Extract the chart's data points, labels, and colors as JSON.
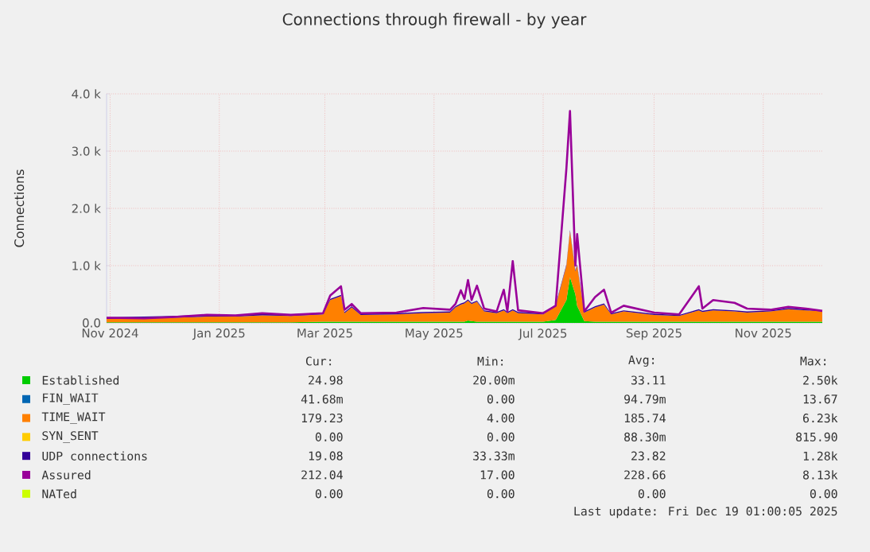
{
  "chart_data": {
    "type": "area",
    "stacked": true,
    "title": "Connections through firewall - by year",
    "ylabel": "Connections",
    "x": [
      "2024-10-30",
      "2024-11-20",
      "2024-12-05",
      "2024-12-25",
      "2025-01-10",
      "2025-01-25",
      "2025-02-10",
      "2025-02-28",
      "2025-03-04",
      "2025-03-10",
      "2025-03-12",
      "2025-03-16",
      "2025-03-21",
      "2025-04-10",
      "2025-04-25",
      "2025-05-10",
      "2025-05-13",
      "2025-05-16",
      "2025-05-18",
      "2025-05-20",
      "2025-05-22",
      "2025-05-25",
      "2025-05-29",
      "2025-06-05",
      "2025-06-09",
      "2025-06-11",
      "2025-06-14",
      "2025-06-17",
      "2025-07-01",
      "2025-07-08",
      "2025-07-14",
      "2025-07-16",
      "2025-07-19",
      "2025-07-20",
      "2025-07-24",
      "2025-07-30",
      "2025-08-04",
      "2025-08-08",
      "2025-08-15",
      "2025-09-01",
      "2025-09-15",
      "2025-09-26",
      "2025-09-28",
      "2025-10-04",
      "2025-10-16",
      "2025-10-23",
      "2025-11-05",
      "2025-11-15",
      "2025-11-25",
      "2025-12-04"
    ],
    "series": [
      {
        "name": "Established",
        "color": "#00cc00",
        "values": [
          10,
          10,
          10,
          10,
          10,
          10,
          10,
          20,
          20,
          20,
          20,
          20,
          20,
          20,
          20,
          20,
          20,
          20,
          20,
          40,
          30,
          20,
          20,
          20,
          20,
          20,
          20,
          20,
          20,
          50,
          400,
          800,
          500,
          300,
          30,
          20,
          20,
          20,
          20,
          20,
          20,
          20,
          20,
          20,
          20,
          20,
          20,
          20,
          20,
          20
        ]
      },
      {
        "name": "FIN_WAIT",
        "color": "#0066b3",
        "values": [
          null,
          null,
          null,
          null,
          null,
          null,
          null,
          null,
          null,
          null,
          null,
          null,
          null,
          null,
          null,
          null,
          null,
          null,
          null,
          null,
          null,
          null,
          null,
          null,
          null,
          null,
          null,
          null,
          null,
          null,
          null,
          null,
          null,
          null,
          null,
          null,
          null,
          null,
          null,
          null,
          null,
          null,
          null,
          null,
          null,
          null,
          null,
          null,
          null,
          null
        ]
      },
      {
        "name": "TIME_WAIT",
        "color": "#ff8000",
        "values": [
          60,
          70,
          80,
          100,
          100,
          120,
          110,
          130,
          380,
          450,
          150,
          250,
          120,
          130,
          150,
          160,
          250,
          300,
          320,
          350,
          300,
          350,
          180,
          150,
          200,
          150,
          200,
          150,
          130,
          250,
          600,
          800,
          400,
          700,
          150,
          250,
          300,
          130,
          180,
          120,
          100,
          200,
          170,
          200,
          180,
          160,
          180,
          220,
          200,
          180
        ]
      },
      {
        "name": "SYN_SENT",
        "color": "#ffcc00",
        "values": [
          null,
          null,
          null,
          null,
          null,
          null,
          null,
          null,
          null,
          null,
          null,
          null,
          null,
          null,
          null,
          null,
          null,
          null,
          null,
          null,
          null,
          null,
          null,
          null,
          null,
          null,
          null,
          null,
          null,
          null,
          null,
          null,
          null,
          null,
          null,
          null,
          null,
          null,
          null,
          null,
          null,
          null,
          null,
          null,
          null,
          null,
          null,
          null,
          null,
          null
        ]
      },
      {
        "name": "UDP connections",
        "color": "#330099",
        "values": [
          30,
          30,
          30,
          30,
          30,
          30,
          30,
          30,
          20,
          20,
          20,
          20,
          20,
          20,
          20,
          20,
          20,
          20,
          20,
          20,
          20,
          20,
          20,
          20,
          20,
          20,
          20,
          20,
          20,
          20,
          20,
          20,
          20,
          20,
          20,
          20,
          20,
          20,
          20,
          20,
          20,
          20,
          20,
          20,
          20,
          20,
          20,
          20,
          20,
          20
        ]
      },
      {
        "name": "Assured",
        "color": "#990099",
        "type": "line",
        "values": [
          90,
          80,
          100,
          140,
          130,
          170,
          140,
          170,
          480,
          640,
          230,
          330,
          170,
          180,
          260,
          230,
          330,
          570,
          420,
          750,
          400,
          650,
          250,
          200,
          580,
          200,
          1080,
          220,
          170,
          300,
          2700,
          3700,
          1000,
          1550,
          200,
          450,
          580,
          180,
          300,
          180,
          150,
          640,
          250,
          400,
          350,
          250,
          230,
          280,
          250,
          210
        ]
      },
      {
        "name": "NATed",
        "color": "#ccff00",
        "type": "line",
        "values": [
          null,
          null,
          null,
          null,
          null,
          null,
          null,
          null,
          null,
          null,
          null,
          null,
          null,
          null,
          null,
          null,
          null,
          null,
          null,
          null,
          null,
          null,
          null,
          null,
          null,
          null,
          null,
          null,
          null,
          null,
          null,
          null,
          null,
          null,
          null,
          null,
          null,
          null,
          null,
          null,
          null,
          null,
          null,
          null,
          null,
          null,
          null,
          null,
          null,
          null
        ]
      }
    ],
    "xlim": [
      "2024-10-30",
      "2025-12-04"
    ],
    "xticks": [
      {
        "value": "2024-11-01",
        "label": "Nov 2024"
      },
      {
        "value": "2025-01-01",
        "label": "Jan 2025"
      },
      {
        "value": "2025-03-01",
        "label": "Mar 2025"
      },
      {
        "value": "2025-05-01",
        "label": "May 2025"
      },
      {
        "value": "2025-07-01",
        "label": "Jul 2025"
      },
      {
        "value": "2025-09-01",
        "label": "Sep 2025"
      },
      {
        "value": "2025-11-01",
        "label": "Nov 2025"
      }
    ],
    "ylim": [
      0,
      4000
    ],
    "yticks": [
      {
        "value": 0,
        "label": "0.0"
      },
      {
        "value": 1000,
        "label": "1.0 k"
      },
      {
        "value": 2000,
        "label": "2.0 k"
      },
      {
        "value": 3000,
        "label": "3.0 k"
      },
      {
        "value": 4000,
        "label": "4.0 k"
      }
    ],
    "grid": true,
    "legend": "bottom",
    "annotations": [
      "Cur:",
      "Min:",
      "Avg:",
      "Max:",
      "24.98",
      "20.00m",
      "33.11",
      "2.50k",
      "41.68m",
      "0.00",
      "94.79m",
      "13.67",
      "179.23",
      "4.00",
      "185.74",
      "6.23k",
      "0.00",
      "0.00",
      "88.30m",
      "815.90",
      "19.08",
      "33.33m",
      "23.82",
      "1.28k",
      "212.04",
      "17.00",
      "228.66",
      "8.13k",
      "0.00",
      "0.00",
      "0.00",
      "0.00",
      "Last update: Fri Dec 19 01:00:05 2025"
    ]
  }
}
